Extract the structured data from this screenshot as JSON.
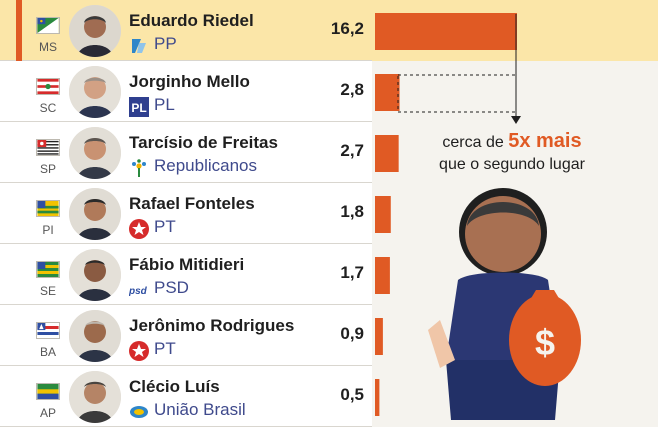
{
  "chart_data": {
    "type": "bar",
    "orientation": "horizontal",
    "categories": [
      "Eduardo Riedel",
      "Jorginho Mello",
      "Tarcísio de Freitas",
      "Rafael Fonteles",
      "Fábio Mitidieri",
      "Jerônimo Rodrigues",
      "Clécio Luís"
    ],
    "values": [
      16.2,
      2.8,
      2.7,
      1.8,
      1.7,
      0.9,
      0.5
    ],
    "value_labels": [
      "16,2",
      "2,8",
      "2,7",
      "1,8",
      "1,7",
      "0,9",
      "0,5"
    ],
    "bar_color": "#e05a24",
    "highlight_color": "#fbe6a8"
  },
  "rows": [
    {
      "uf": "MS",
      "name": "Eduardo Riedel",
      "party": "PP",
      "value": "16,2",
      "party_color": "#3f4a8c"
    },
    {
      "uf": "SC",
      "name": "Jorginho Mello",
      "party": "PL",
      "value": "2,8",
      "party_color": "#3f4a8c"
    },
    {
      "uf": "SP",
      "name": "Tarcísio de Freitas",
      "party": "Republicanos",
      "value": "2,7",
      "party_color": "#3f4a8c"
    },
    {
      "uf": "PI",
      "name": "Rafael Fonteles",
      "party": "PT",
      "value": "1,8",
      "party_color": "#3f4a8c"
    },
    {
      "uf": "SE",
      "name": "Fábio Mitidieri",
      "party": "PSD",
      "value": "1,7",
      "party_color": "#3f4a8c"
    },
    {
      "uf": "BA",
      "name": "Jerônimo Rodrigues",
      "party": "PT",
      "value": "0,9",
      "party_color": "#3f4a8c"
    },
    {
      "uf": "AP",
      "name": "Clécio Luís",
      "party": "União Brasil",
      "value": "0,5",
      "party_color": "#3f4a8c"
    }
  ],
  "annotation": {
    "line1_prefix": "cerca de ",
    "line1_emphasis": "5x mais",
    "line2": "que o segundo lugar"
  },
  "party_logos": [
    "pp-logo-icon",
    "pl-logo-icon",
    "republicanos-logo-icon",
    "pt-star-icon",
    "psd-logo-icon",
    "pt-star-icon",
    "uniao-brasil-logo-icon"
  ],
  "party_logo_texts": [
    "",
    "PL",
    "",
    "",
    "psd",
    "",
    ""
  ]
}
